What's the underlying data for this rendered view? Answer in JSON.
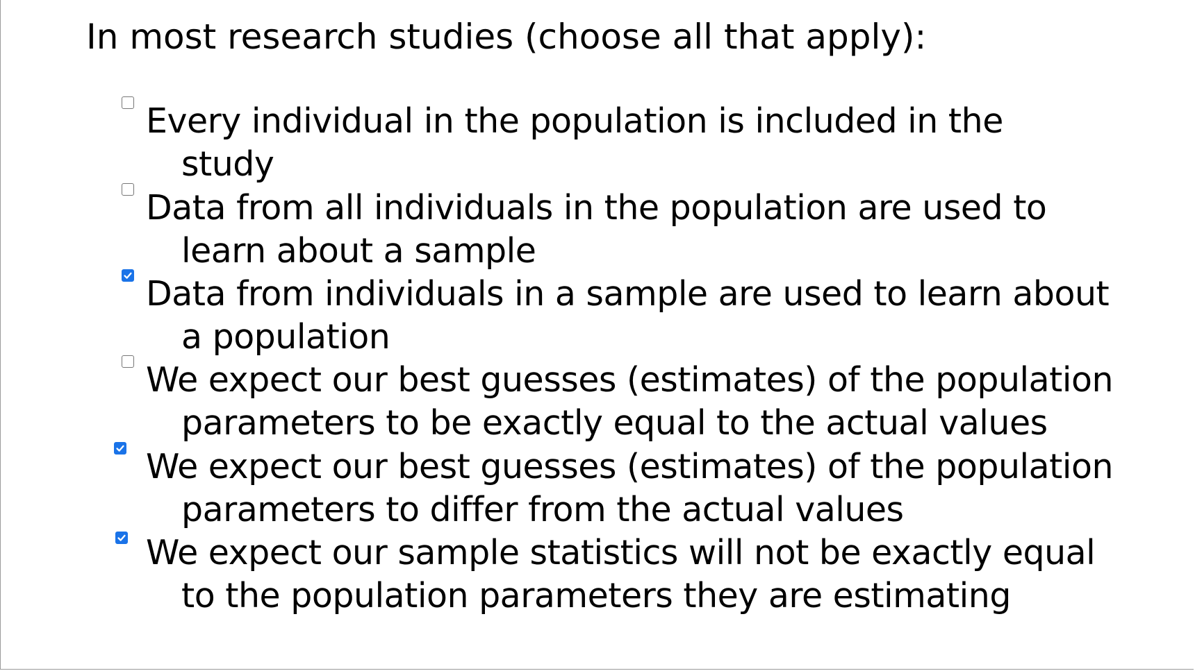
{
  "question": {
    "text": "In most research studies (choose all that apply):"
  },
  "options": [
    {
      "line1": "Every individual in the population is included in the",
      "line2": "study",
      "checked": false
    },
    {
      "line1": "Data from all individuals in the population are used to",
      "line2": "learn about a sample",
      "checked": false
    },
    {
      "line1": "Data from individuals in a sample are used to learn about",
      "line2": "a population",
      "checked": true
    },
    {
      "line1": "We expect our best guesses (estimates) of the population",
      "line2": "parameters to be exactly equal to the actual values",
      "checked": false
    },
    {
      "line1": "We expect our best guesses (estimates) of the population",
      "line2": "parameters to differ from the actual values",
      "checked": true
    },
    {
      "line1": "We expect our sample statistics will not be exactly equal",
      "line2": "to the population parameters they are estimating",
      "checked": true
    }
  ],
  "colors": {
    "checkbox_checked": "#1a73e8",
    "checkbox_border": "#767676",
    "text": "#000000"
  }
}
